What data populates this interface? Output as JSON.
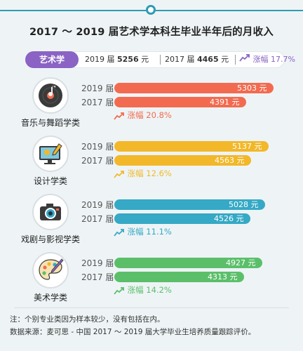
{
  "title": "2017 ～ 2019 届艺术学本科生毕业半年后的月收入",
  "summary": {
    "label": "艺术学",
    "y2019_prefix": "2019 届 ",
    "y2019_value": "5256",
    "y2017_prefix": "2017 届 ",
    "y2017_value": "4465",
    "unit": " 元",
    "growth": "涨幅 17.7%"
  },
  "colors": {
    "music": "#f26b50",
    "design": "#f2b82a",
    "drama": "#35a9c5",
    "art": "#5bbf6a",
    "accent": "#8a63c4"
  },
  "categories": [
    {
      "name": "音乐与舞蹈学类",
      "icon": "music-disc-icon",
      "v2019": "5303 元",
      "v2017": "4391 元",
      "growth": "涨幅 20.8%"
    },
    {
      "name": "设计学类",
      "icon": "design-monitor-icon",
      "v2019": "5137 元",
      "v2017": "4563 元",
      "growth": "涨幅 12.6%"
    },
    {
      "name": "戏剧与影视学类",
      "icon": "camera-icon",
      "v2019": "5028 元",
      "v2017": "4526 元",
      "growth": "涨幅 11.1%"
    },
    {
      "name": "美术学类",
      "icon": "palette-icon",
      "v2019": "4927 元",
      "v2017": "4313 元",
      "growth": "涨幅 14.2%"
    }
  ],
  "row_labels": {
    "y2019": "2019 届",
    "y2017": "2017 届"
  },
  "chart_data": {
    "type": "bar",
    "title": "2017 ～ 2019 届艺术学本科生毕业半年后的月收入",
    "categories": [
      "音乐与舞蹈学类",
      "设计学类",
      "戏剧与影视学类",
      "美术学类"
    ],
    "series": [
      {
        "name": "2019 届",
        "values": [
          5303,
          5137,
          5028,
          4927
        ]
      },
      {
        "name": "2017 届",
        "values": [
          4391,
          4563,
          4526,
          4313
        ]
      }
    ],
    "growth_pct": [
      20.8,
      12.6,
      11.1,
      14.2
    ],
    "overall": {
      "name": "艺术学",
      "y2019": 5256,
      "y2017": 4465,
      "growth_pct": 17.7
    }
  },
  "notes": {
    "line1": "注：个别专业类因为样本较少，没有包括在内。",
    "line2": "数据来源：麦可思 - 中国 2017 ～ 2019 届大学毕业生培养质量跟踪评价。"
  }
}
